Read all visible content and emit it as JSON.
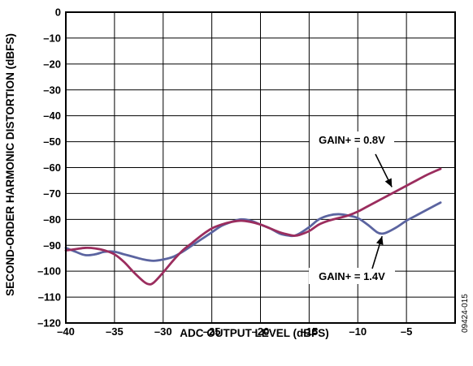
{
  "chart_data": {
    "type": "line",
    "xlabel": "ADC OUTPUT LEVEL (dBFS)",
    "ylabel": "SECOND-ORDER HARMONIC DISTORTION (dBFS)",
    "xlim": [
      -40,
      0
    ],
    "ylim": [
      -120,
      0
    ],
    "x_ticks": [
      -40,
      -35,
      -30,
      -25,
      -20,
      -15,
      -10,
      -5
    ],
    "x_tick_labels": [
      "–40",
      "–35",
      "–30",
      "–25",
      "–20",
      "–15",
      "–10",
      "–5"
    ],
    "y_ticks": [
      0,
      -10,
      -20,
      -30,
      -40,
      -50,
      -60,
      -70,
      -80,
      -90,
      -100,
      -110,
      -120
    ],
    "y_tick_labels": [
      "0",
      "–10",
      "–20",
      "–30",
      "–40",
      "–50",
      "–60",
      "–70",
      "–80",
      "–90",
      "–100",
      "–110",
      "–120"
    ],
    "grid": true,
    "legend": "none",
    "series": [
      {
        "name": "GAIN+ = 0.8V",
        "color": "#9b2d5e",
        "x": [
          -40,
          -39,
          -38,
          -37,
          -36,
          -35,
          -34,
          -33,
          -32,
          -31.5,
          -31,
          -30,
          -29,
          -28,
          -27,
          -26,
          -25,
          -24,
          -23,
          -22,
          -21,
          -20,
          -19,
          -18,
          -17,
          -16.5,
          -16,
          -15,
          -14,
          -13,
          -12,
          -11,
          -10,
          -9,
          -8,
          -7,
          -6,
          -5,
          -4,
          -3,
          -2,
          -1.5
        ],
        "y": [
          -92,
          -91.5,
          -91,
          -91.2,
          -92,
          -93.5,
          -96.5,
          -100.5,
          -104,
          -105,
          -104.5,
          -100.5,
          -96,
          -92,
          -89,
          -86,
          -83.5,
          -82,
          -81,
          -80.5,
          -81,
          -82,
          -83.5,
          -85,
          -86,
          -86.3,
          -86,
          -84.5,
          -82,
          -80.5,
          -79.5,
          -78.5,
          -77,
          -75,
          -73,
          -71,
          -69,
          -67,
          -65,
          -63,
          -61.3,
          -60.5
        ]
      },
      {
        "name": "GAIN+ = 1.4V",
        "color": "#5b64a0",
        "x": [
          -40,
          -39,
          -38,
          -37,
          -36,
          -35,
          -34,
          -33,
          -32,
          -31,
          -30,
          -29,
          -28,
          -27,
          -26,
          -25,
          -24,
          -23,
          -22,
          -21,
          -20,
          -19,
          -18,
          -17,
          -16.5,
          -16,
          -15,
          -14,
          -13,
          -12,
          -11,
          -10,
          -9,
          -8,
          -7.5,
          -7,
          -6,
          -5,
          -4,
          -3,
          -2,
          -1.5
        ],
        "y": [
          -91,
          -92.5,
          -93.8,
          -93.5,
          -92.5,
          -92.5,
          -93.5,
          -94.5,
          -95.5,
          -96,
          -95.5,
          -94.5,
          -92.5,
          -90,
          -87.5,
          -85,
          -82.5,
          -81,
          -80,
          -80.5,
          -82,
          -83.5,
          -85.5,
          -86.3,
          -86.3,
          -85.5,
          -83,
          -80,
          -78.5,
          -78,
          -78.5,
          -79.5,
          -82,
          -85,
          -85.5,
          -85,
          -83,
          -80.5,
          -78.5,
          -76.5,
          -74.5,
          -73.5
        ]
      }
    ],
    "annotations": [
      {
        "text": "GAIN+ = 0.8V",
        "series": 0,
        "point_to": [
          -6.5,
          -67.5
        ]
      },
      {
        "text": "GAIN+ = 1.4V",
        "series": 1,
        "point_to": [
          -7.5,
          -86.5
        ]
      }
    ]
  },
  "figure_id": "09424-015"
}
